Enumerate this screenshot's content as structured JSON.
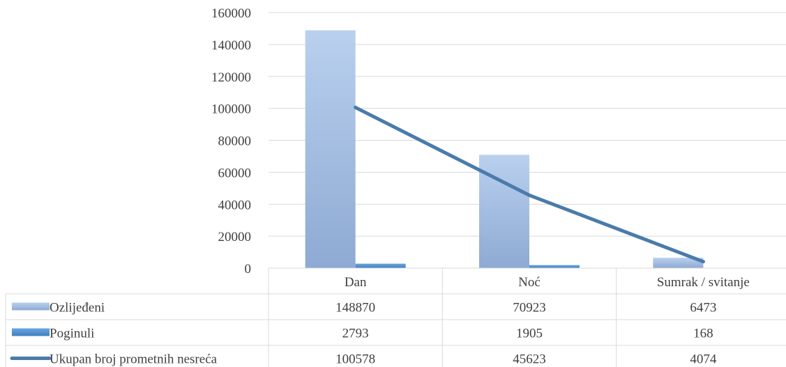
{
  "chart_data": {
    "type": "bar",
    "categories": [
      "Dan",
      "Noć",
      "Sumrak / svitanje"
    ],
    "series": [
      {
        "name": "Ozlijeđeni",
        "type": "bar",
        "values": [
          148870,
          70923,
          6473
        ],
        "color": "#a9c3e6"
      },
      {
        "name": "Poginuli",
        "type": "bar",
        "values": [
          2793,
          1905,
          168
        ],
        "color": "#5b9bd5"
      },
      {
        "name": "Ukupan broj prometnih nesreća",
        "type": "line",
        "values": [
          100578,
          45623,
          4074
        ],
        "color": "#4a7bab"
      }
    ],
    "yticks": [
      "0",
      "20000",
      "40000",
      "60000",
      "80000",
      "100000",
      "120000",
      "140000",
      "160000"
    ],
    "ylim": [
      0,
      160000
    ],
    "grid": true,
    "legend": "data-table"
  }
}
